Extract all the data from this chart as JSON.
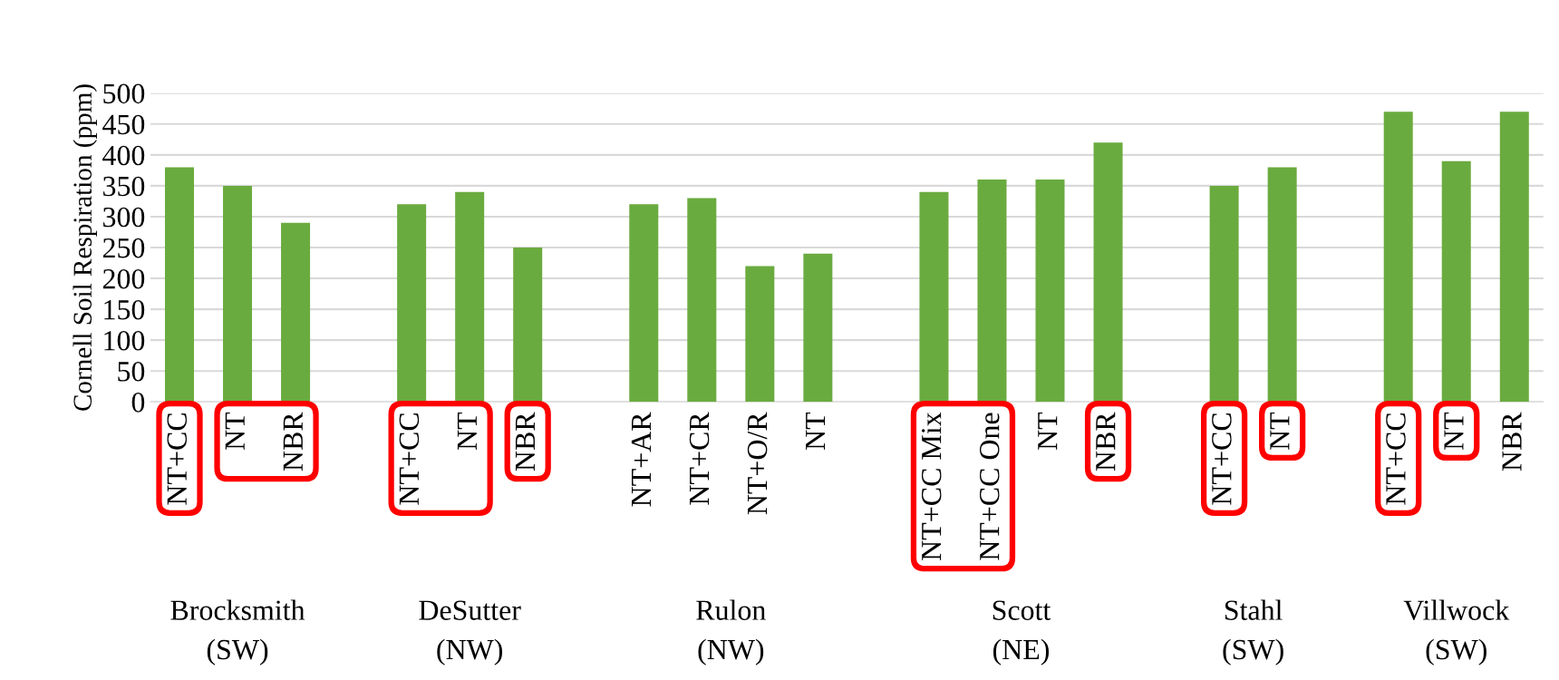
{
  "chart_data": {
    "type": "bar",
    "ylabel": "Cornell Soil Respiration (ppm)",
    "categories": [
      "NT+CC",
      "NT",
      "NBR",
      null,
      "NT+CC",
      "NT",
      "NBR",
      null,
      "NT+AR",
      "NT+CR",
      "NT+O/R",
      "NT",
      null,
      "NT+CC Mix",
      "NT+CC One",
      "NT",
      "NBR",
      null,
      "NT+CC",
      "NT",
      null,
      "NT+CC",
      "NT",
      "NBR"
    ],
    "values": [
      380,
      350,
      290,
      null,
      320,
      340,
      250,
      null,
      320,
      330,
      220,
      240,
      null,
      340,
      360,
      360,
      420,
      null,
      350,
      380,
      null,
      470,
      390,
      470
    ],
    "color": "#6aab3f",
    "ylim": [
      0,
      500
    ],
    "yticks": [
      0,
      50,
      100,
      150,
      200,
      250,
      300,
      350,
      400,
      450,
      500
    ],
    "grid": "y",
    "annotations": [
      "Brocksmith\n(SW)",
      "DeSutter\n(NW)",
      "Rulon\n(NW)",
      "Scott\n(NE)",
      "Stahl\n(SW)",
      "Villwock\n(SW)"
    ]
  }
}
